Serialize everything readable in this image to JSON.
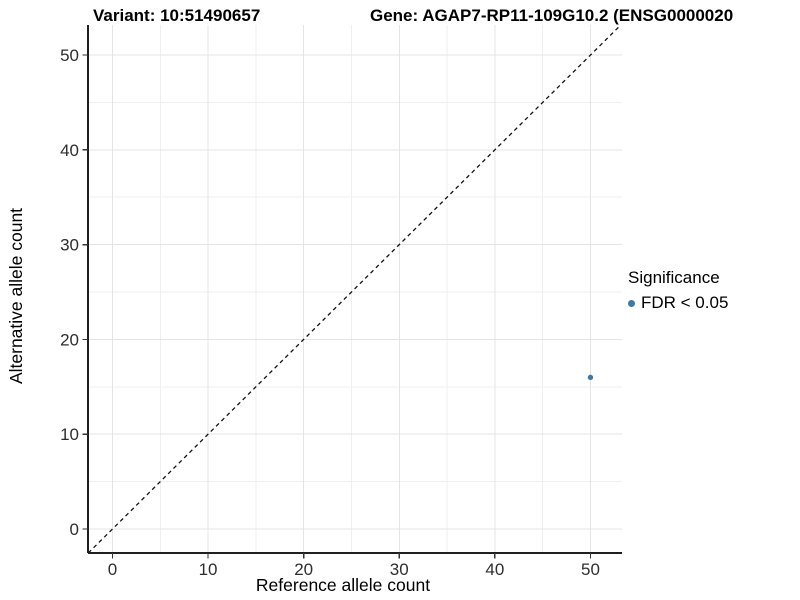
{
  "titles": {
    "variant": "Variant: 10:51490657",
    "gene": "Gene: AGAP7-RP11-109G10.2 (ENSG0000020"
  },
  "legend": {
    "title": "Significance",
    "items": [
      {
        "label": "FDR < 0.05",
        "color": "#4377a8"
      }
    ]
  },
  "colors": {
    "point": "#4377a8",
    "grid_major": "#e4e4e4",
    "grid_minor": "#efefef",
    "axis_line": "#1f1f1f",
    "tick_mark": "#333333",
    "tick_label": "#2e2e2e",
    "axis_title": "#000000",
    "identity_line": "#111111"
  },
  "chart_data": {
    "type": "scatter",
    "title": "Variant: 10:51490657 — Gene: AGAP7-RP11-109G10.2 (ENSG0000020…)",
    "xlabel": "Reference allele count",
    "ylabel": "Alternative allele count",
    "xlim": [
      -2.56,
      53.3
    ],
    "ylim": [
      -2.53,
      53.17
    ],
    "x_ticks": [
      0,
      10,
      20,
      30,
      40,
      50
    ],
    "y_ticks": [
      0,
      10,
      20,
      30,
      40,
      50
    ],
    "x_minor_ticks": [
      5,
      15,
      25,
      35,
      45
    ],
    "y_minor_ticks": [
      5,
      15,
      25,
      35,
      45
    ],
    "grid": "major+minor",
    "legend_position": "right",
    "identity_line": {
      "slope": 1,
      "intercept": 0,
      "style": "dashed"
    },
    "series": [
      {
        "name": "FDR < 0.05",
        "points": [
          {
            "x": 50,
            "y": 16
          }
        ]
      }
    ]
  }
}
